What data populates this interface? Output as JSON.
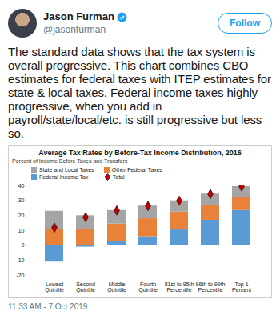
{
  "tweet": {
    "name": "Jason Furman",
    "handle": "@jasonfurman",
    "button": "Follow",
    "text": "The standard data shows that the tax system is overall progressive. This chart combines CBO estimates for federal taxes with ITEP estimates for state & local taxes. Federal income taxes highly progressive, when you add in payroll/state/local/etc. is still progressive but less so.",
    "timestamp": "11:33 AM - 7 Oct 2019"
  },
  "chart_data": {
    "type": "bar",
    "title": "Average Tax Rates by Before-Tax Income Distribution, 2016",
    "subtitle": "Percent of Income Before Taxes and Transfers",
    "categories": [
      "Lowest Quintile",
      "Second Quintile",
      "Middle Quintile",
      "Fourth Quintile",
      "81st to 95th Percentile",
      "96th to 99th Percentile",
      "Top 1 Percent"
    ],
    "series": [
      {
        "name": "State and Local Taxes",
        "color": "#a5a5a5",
        "values": [
          12,
          9,
          9,
          8.5,
          7.5,
          7.5,
          7.5
        ]
      },
      {
        "name": "Other Federal Taxes",
        "color": "#e8823b",
        "values": [
          11,
          11,
          11.5,
          12,
          12,
          10,
          8.5
        ]
      },
      {
        "name": "Federal Income Tax",
        "color": "#5b9bd5",
        "values": [
          -11,
          -1,
          3,
          6,
          10.5,
          17,
          23.5
        ]
      },
      {
        "name": "Total",
        "type": "scatter",
        "marker": "diamond",
        "color": "#c00000",
        "values": [
          12,
          19,
          23.5,
          26.5,
          30,
          34.5,
          39.5
        ]
      }
    ],
    "ylim": [
      -20,
      40
    ],
    "yticks": [
      -20,
      -10,
      0,
      10,
      20,
      30,
      40
    ],
    "stacked": true,
    "grid": false,
    "legend": "top-left"
  }
}
